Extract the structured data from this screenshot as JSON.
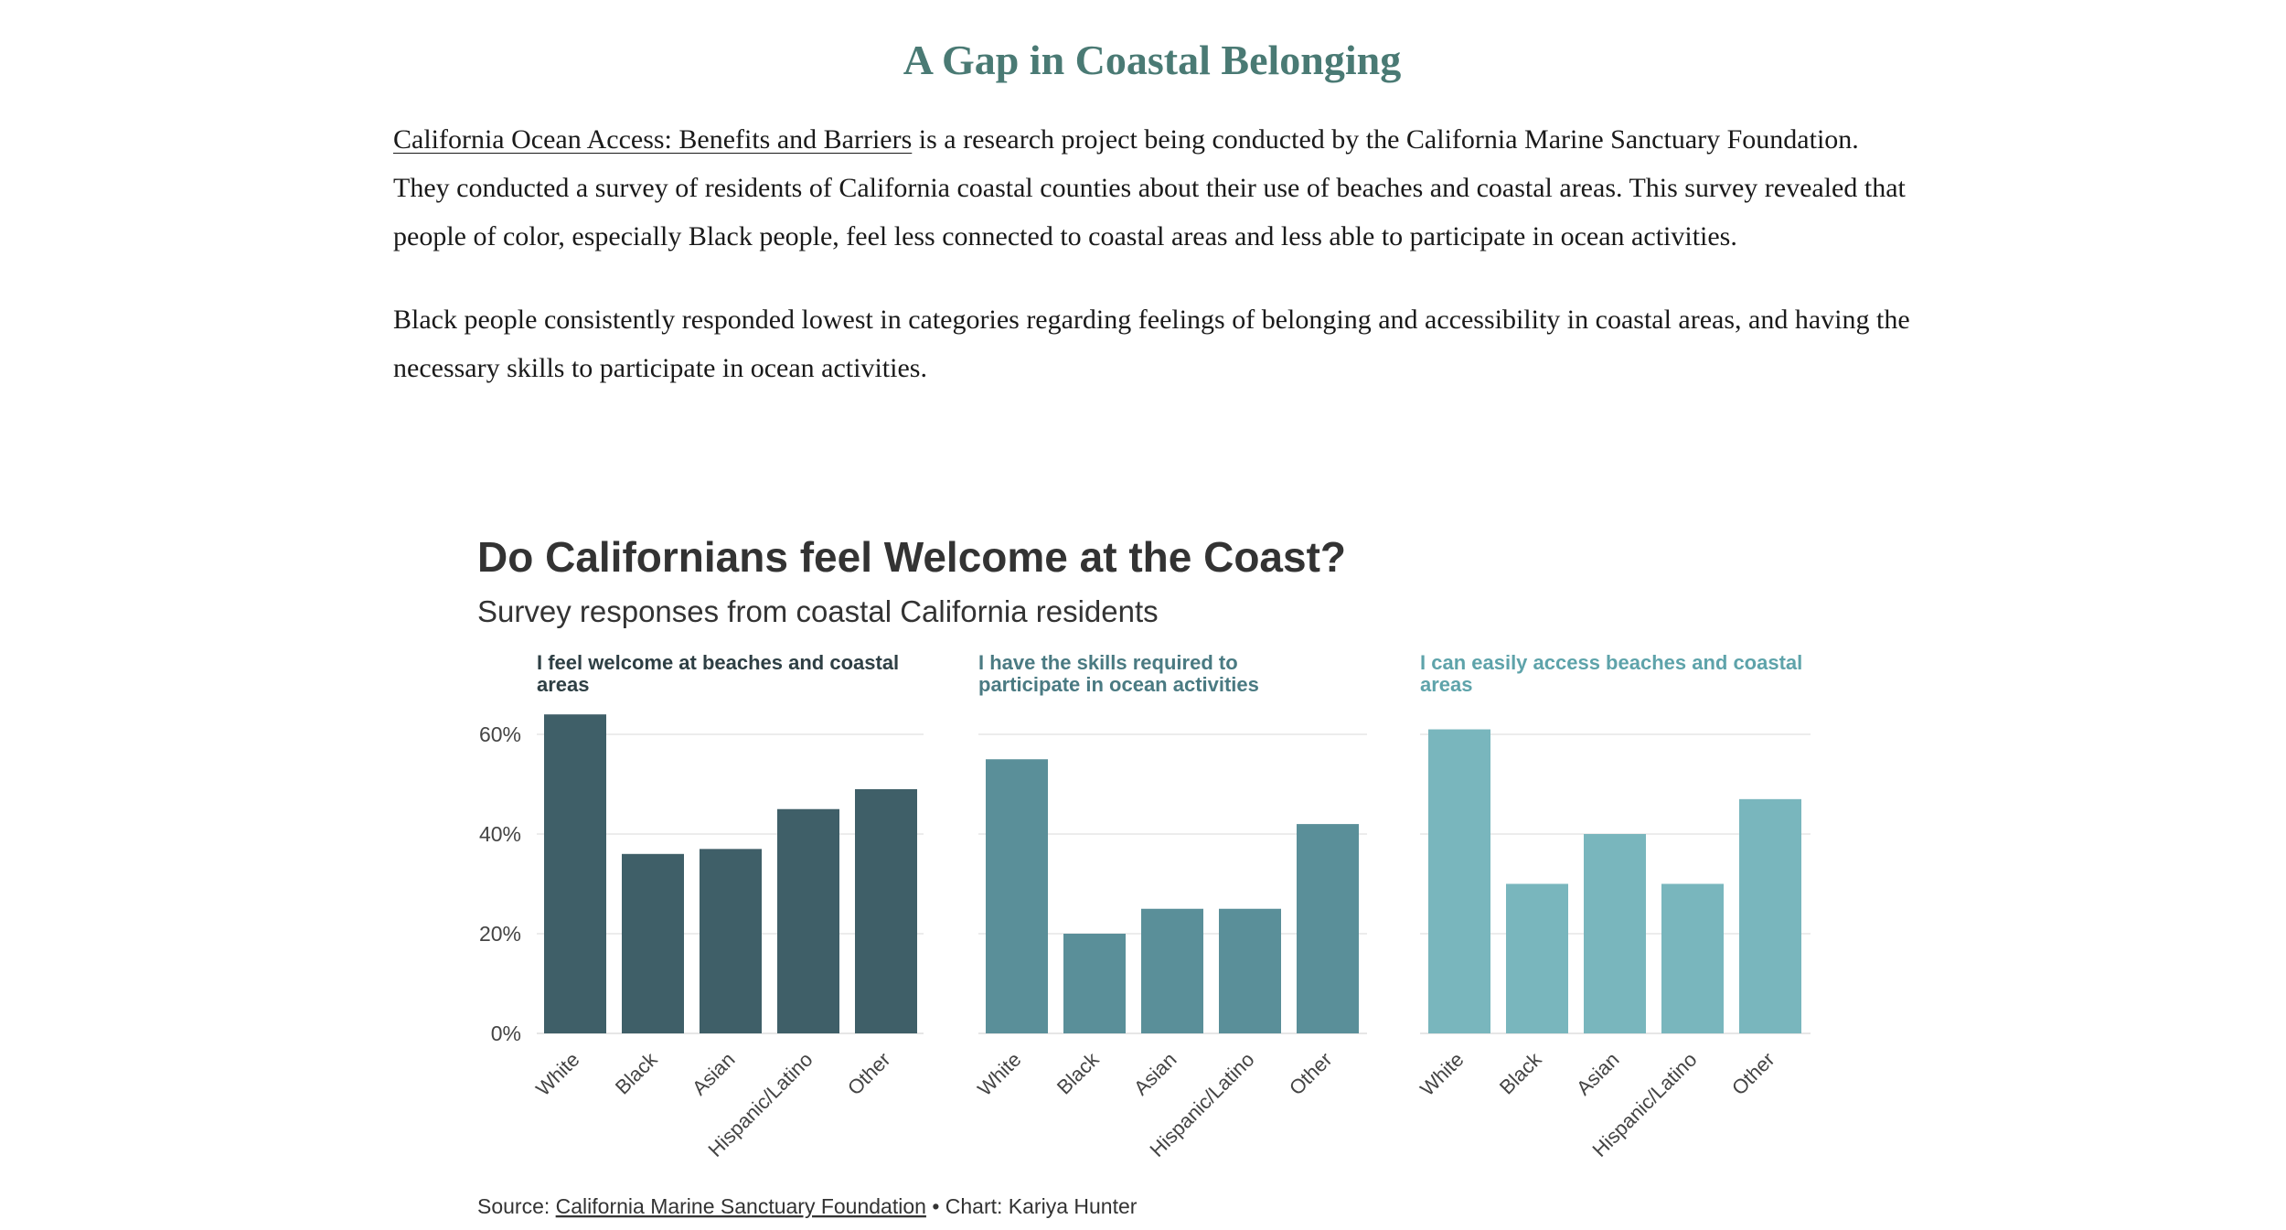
{
  "article": {
    "heading": "A Gap in Coastal Belonging",
    "para1_link": "California Ocean Access: Benefits and Barriers",
    "para1_rest": " is a research project being conducted by the California Marine Sanctuary Foundation. They conducted a survey of residents of California coastal counties about their use of beaches and coastal areas. This survey revealed that people of color, especially Black people, feel less connected to coastal areas and less able to participate in ocean activities.",
    "para2": "Black people consistently responded lowest in categories regarding feelings of belonging and accessibility in coastal areas, and having the necessary skills to participate in ocean activities."
  },
  "chart_data": {
    "type": "bar",
    "title": "Do Californians feel Welcome at the Coast?",
    "subtitle": "Survey responses from coastal California residents",
    "categories": [
      "White",
      "Black",
      "Asian",
      "Hispanic/Latino",
      "Other"
    ],
    "y_ticks": [
      "0%",
      "20%",
      "40%",
      "60%"
    ],
    "ylim": [
      0,
      70
    ],
    "grid": true,
    "series": [
      {
        "name": "I feel welcome at beaches and coastal areas",
        "values": [
          64,
          36,
          37,
          45,
          49
        ],
        "color": "#3f5f68",
        "title_color": "#2e3f44"
      },
      {
        "name": "I have the skills required to participate in ocean activities",
        "values": [
          55,
          20,
          25,
          25,
          42
        ],
        "color": "#5a8f99",
        "title_color": "#4a7a82"
      },
      {
        "name": "I can easily access beaches and coastal areas",
        "values": [
          61,
          30,
          40,
          30,
          47
        ],
        "color": "#79b6bd",
        "title_color": "#5ea3aa"
      }
    ],
    "source_prefix": "Source: ",
    "source_link": "California Marine Sanctuary Foundation",
    "source_suffix": " • Chart: Kariya Hunter"
  }
}
